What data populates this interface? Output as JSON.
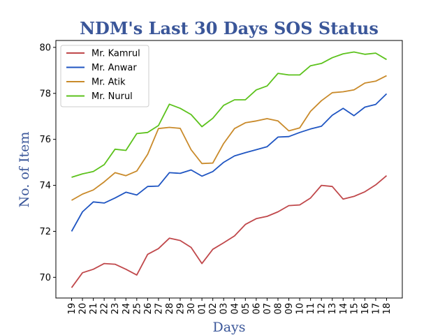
{
  "chart_data": {
    "type": "line",
    "title": "NDM's Last 30 Days SOS Status",
    "xlabel": "Days",
    "ylabel": "No. of Item",
    "categories": [
      "19",
      "20",
      "21",
      "22",
      "23",
      "24",
      "25",
      "26",
      "27",
      "28",
      "29",
      "30",
      "01",
      "02",
      "03",
      "04",
      "05",
      "06",
      "07",
      "08",
      "09",
      "10",
      "11",
      "12",
      "13",
      "14",
      "15",
      "16",
      "17",
      "18"
    ],
    "ylim": [
      69.1,
      80.3
    ],
    "yticks": [
      70,
      72,
      74,
      76,
      78,
      80
    ],
    "grid": false,
    "legend_position": "top-left",
    "series": [
      {
        "name": "Mr. Kamrul",
        "color": "#c0484b",
        "values": [
          69.55,
          70.2,
          70.35,
          70.6,
          70.57,
          70.35,
          70.1,
          71.0,
          71.25,
          71.7,
          71.6,
          71.3,
          70.6,
          71.22,
          71.5,
          71.8,
          72.3,
          72.55,
          72.65,
          72.85,
          73.12,
          73.15,
          73.45,
          74.0,
          73.95,
          73.4,
          73.52,
          73.72,
          74.02,
          74.42
        ]
      },
      {
        "name": "Mr. Anwar",
        "color": "#1f55c2",
        "values": [
          72.0,
          72.85,
          73.28,
          73.23,
          73.45,
          73.7,
          73.58,
          73.95,
          73.97,
          74.55,
          74.52,
          74.67,
          74.4,
          74.6,
          75.0,
          75.28,
          75.42,
          75.55,
          75.68,
          76.1,
          76.12,
          76.3,
          76.45,
          76.57,
          77.05,
          77.35,
          77.03,
          77.4,
          77.52,
          77.98
        ]
      },
      {
        "name": "Mr. Atik",
        "color": "#c98a2a",
        "values": [
          73.35,
          73.62,
          73.8,
          74.15,
          74.55,
          74.42,
          74.62,
          75.35,
          76.47,
          76.52,
          76.48,
          75.55,
          74.95,
          74.97,
          75.82,
          76.47,
          76.72,
          76.8,
          76.9,
          76.8,
          76.37,
          76.5,
          77.22,
          77.68,
          78.03,
          78.07,
          78.15,
          78.45,
          78.53,
          78.77
        ]
      },
      {
        "name": "Mr. Nurul",
        "color": "#5cc21c",
        "values": [
          74.35,
          74.5,
          74.6,
          74.9,
          75.57,
          75.52,
          76.25,
          76.3,
          76.6,
          77.53,
          77.35,
          77.08,
          76.55,
          76.92,
          77.48,
          77.72,
          77.72,
          78.15,
          78.32,
          78.87,
          78.8,
          78.8,
          79.2,
          79.3,
          79.55,
          79.72,
          79.8,
          79.7,
          79.75,
          79.47
        ]
      }
    ]
  }
}
